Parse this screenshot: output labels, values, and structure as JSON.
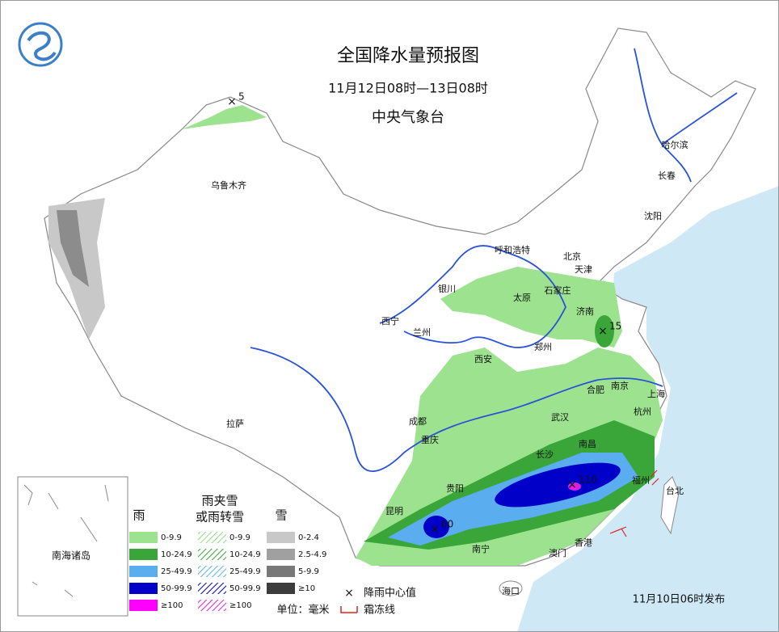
{
  "header": {
    "title": "全国降水量预报图",
    "subtitle": "11月12日08时—13日08时",
    "issuer": "中央气象台"
  },
  "cities": [
    "乌鲁木齐",
    "哈尔滨",
    "长春",
    "沈阳",
    "呼和浩特",
    "北京",
    "天津",
    "石家庄",
    "太原",
    "银川",
    "西宁",
    "兰州",
    "济南",
    "郑州",
    "西安",
    "合肥",
    "南京",
    "上海",
    "杭州",
    "武汉",
    "成都",
    "拉萨",
    "重庆",
    "长沙",
    "南昌",
    "贵阳",
    "昆明",
    "福州",
    "台北",
    "南宁",
    "澳门",
    "香港",
    "海口"
  ],
  "centers": [
    5,
    15,
    110,
    60
  ],
  "legend": {
    "rain": {
      "title": "雨",
      "items": [
        "0-9.9",
        "10-24.9",
        "25-49.9",
        "50-99.9",
        "≥100"
      ]
    },
    "sleet": {
      "title": [
        "雨夹雪",
        "或雨转雪"
      ],
      "items": [
        "0-9.9",
        "10-24.9",
        "25-49.9",
        "50-99.9",
        "≥100"
      ]
    },
    "snow": {
      "title": "雪",
      "items": [
        "0-2.4",
        "2.5-4.9",
        "5-9.9",
        "≥10"
      ]
    },
    "center_label": "降雨中心值",
    "frost_label": "霜冻线",
    "unit": "单位：毫米"
  },
  "inset_label": "南海诸岛",
  "issued": "11月10日06时发布"
}
